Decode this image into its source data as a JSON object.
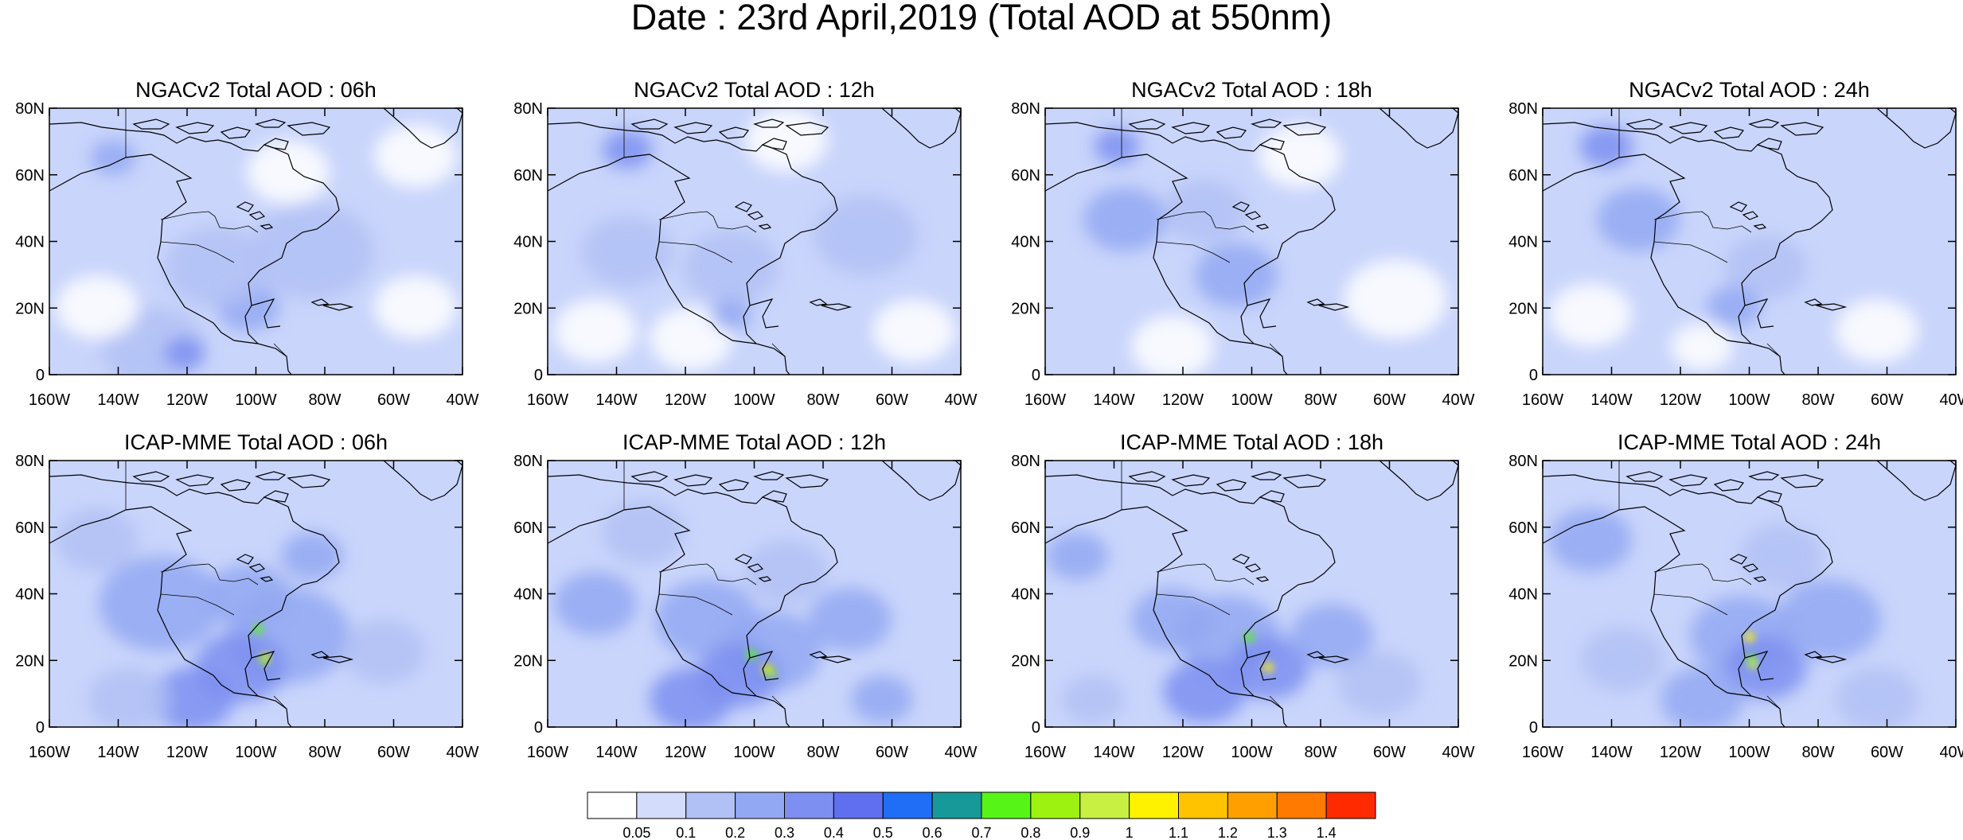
{
  "figure": {
    "title": "Date : 23rd April,2019 (Total AOD at 550nm)"
  },
  "axes": {
    "lat_labels": [
      "80N",
      "60N",
      "40N",
      "20N",
      "0"
    ],
    "lon_labels": [
      "160W",
      "140W",
      "120W",
      "100W",
      "80W",
      "60W",
      "40W"
    ]
  },
  "panels": [
    {
      "title": "NGACv2 Total AOD : 06h",
      "model": "NGACv2",
      "hour": "06h"
    },
    {
      "title": "NGACv2 Total AOD : 12h",
      "model": "NGACv2",
      "hour": "12h"
    },
    {
      "title": "NGACv2 Total AOD : 18h",
      "model": "NGACv2",
      "hour": "18h"
    },
    {
      "title": "NGACv2 Total AOD : 24h",
      "model": "NGACv2",
      "hour": "24h"
    },
    {
      "title": "ICAP-MME Total AOD : 06h",
      "model": "ICAP-MME",
      "hour": "06h"
    },
    {
      "title": "ICAP-MME Total AOD : 12h",
      "model": "ICAP-MME",
      "hour": "12h"
    },
    {
      "title": "ICAP-MME Total AOD : 18h",
      "model": "ICAP-MME",
      "hour": "18h"
    },
    {
      "title": "ICAP-MME Total AOD : 24h",
      "model": "ICAP-MME",
      "hour": "24h"
    }
  ],
  "colorbar": {
    "labels": [
      "0.05",
      "0.1",
      "0.2",
      "0.3",
      "0.4",
      "0.5",
      "0.6",
      "0.7",
      "0.8",
      "0.9",
      "1",
      "1.1",
      "1.2",
      "1.3",
      "1.4"
    ],
    "colors": [
      "#ffffff",
      "#d3dcfa",
      "#b2c1f5",
      "#93a8f2",
      "#7d8ff0",
      "#5f6ff0",
      "#1f6ef5",
      "#179999",
      "#57f517",
      "#9df20f",
      "#c8f042",
      "#fff200",
      "#ffc300",
      "#ffa000",
      "#ff7a00",
      "#ff2a00"
    ]
  },
  "map_colors": {
    "background": "#c9d5fb",
    "coastline": "#000000"
  }
}
